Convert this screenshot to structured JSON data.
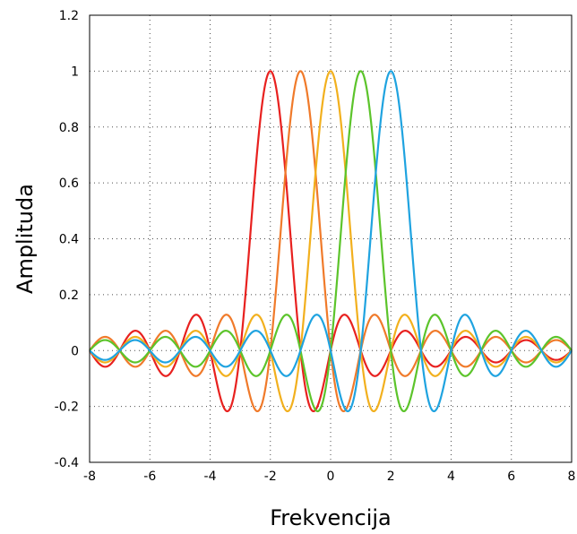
{
  "chart_data": {
    "type": "line",
    "title": "",
    "xlabel": "Frekvencija",
    "ylabel": "Amplituda",
    "xlim": [
      -8,
      8
    ],
    "ylim": [
      -0.4,
      1.2
    ],
    "xticks": [
      -8,
      -6,
      -4,
      -2,
      0,
      2,
      4,
      6,
      8
    ],
    "xtick_labels": [
      "-8",
      "-6",
      "-4",
      "-2",
      "0",
      "2",
      "4",
      "6",
      "8"
    ],
    "yticks": [
      -0.4,
      -0.2,
      0,
      0.2,
      0.4,
      0.6,
      0.8,
      1,
      1.2
    ],
    "ytick_labels": [
      "-0.4",
      "-0.2",
      "0",
      "0.2",
      "0.4",
      "0.6",
      "0.8",
      "1",
      "1.2"
    ],
    "grid": true,
    "legend": "none",
    "function": "sinc",
    "series": [
      {
        "center": -2,
        "color": "#e8211f"
      },
      {
        "center": -1,
        "color": "#f07a2a"
      },
      {
        "center": 0,
        "color": "#f2b01e"
      },
      {
        "center": 1,
        "color": "#5cc42b"
      },
      {
        "center": 2,
        "color": "#1fa3e0"
      }
    ]
  }
}
